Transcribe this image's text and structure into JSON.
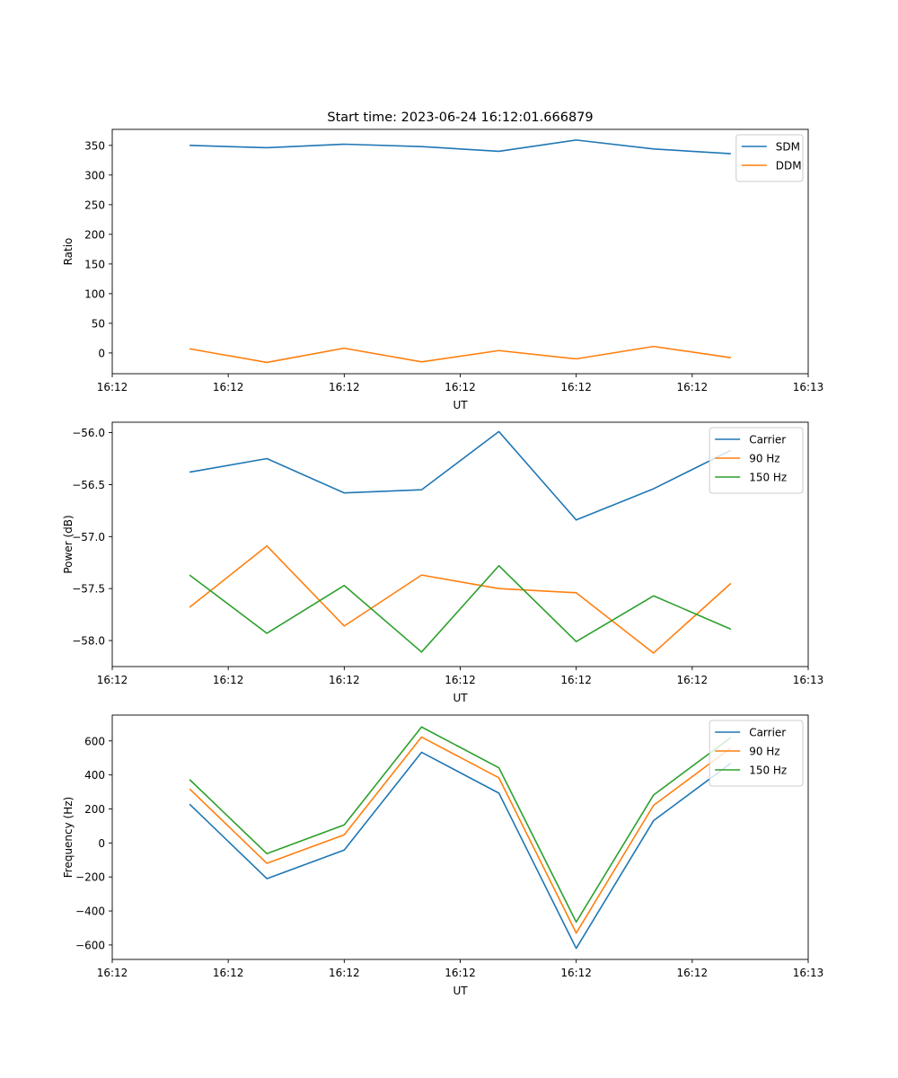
{
  "figure": {
    "title": "Start time: 2023-06-24 16:12:01.666879"
  },
  "chart_data": [
    {
      "type": "line",
      "xlabel": "UT",
      "ylabel": "Ratio",
      "x": [
        0.5,
        1.0,
        1.5,
        2.0,
        2.5,
        3.0,
        3.5,
        4.0
      ],
      "xlim": [
        0,
        4.5
      ],
      "xticks": [
        0,
        0.75,
        1.5,
        2.25,
        3.0,
        3.75,
        4.5
      ],
      "xtick_labels": [
        "16:12",
        "16:12",
        "16:12",
        "16:12",
        "16:12",
        "16:12",
        "16:13"
      ],
      "ylim": [
        -35,
        377
      ],
      "yticks": [
        0,
        50,
        100,
        150,
        200,
        250,
        300,
        350
      ],
      "ytick_labels": [
        "0",
        "50",
        "100",
        "150",
        "200",
        "250",
        "300",
        "350"
      ],
      "legend": "top-right",
      "grid": false,
      "series": [
        {
          "name": "SDM",
          "color": "#1f77b4",
          "values": [
            350,
            346,
            352,
            348,
            340,
            359,
            344,
            336
          ]
        },
        {
          "name": "DDM",
          "color": "#ff7f0e",
          "values": [
            7,
            -16,
            8,
            -15,
            4,
            -10,
            11,
            -8
          ]
        }
      ]
    },
    {
      "type": "line",
      "xlabel": "UT",
      "ylabel": "Power (dB)",
      "x": [
        0.5,
        1.0,
        1.5,
        2.0,
        2.5,
        3.0,
        3.5,
        4.0
      ],
      "xlim": [
        0,
        4.5
      ],
      "xticks": [
        0,
        0.75,
        1.5,
        2.25,
        3.0,
        3.75,
        4.5
      ],
      "xtick_labels": [
        "16:12",
        "16:12",
        "16:12",
        "16:12",
        "16:12",
        "16:12",
        "16:13"
      ],
      "ylim": [
        -58.25,
        -55.9
      ],
      "yticks": [
        -58.0,
        -57.5,
        -57.0,
        -56.5,
        -56.0
      ],
      "ytick_labels": [
        "−58.0",
        "−57.5",
        "−57.0",
        "−56.5",
        "−56.0"
      ],
      "legend": "top-right",
      "grid": false,
      "series": [
        {
          "name": "Carrier",
          "color": "#1f77b4",
          "values": [
            -56.38,
            -56.25,
            -56.58,
            -56.55,
            -55.99,
            -56.84,
            -56.54,
            -56.17
          ]
        },
        {
          "name": "90 Hz",
          "color": "#ff7f0e",
          "values": [
            -57.68,
            -57.09,
            -57.86,
            -57.37,
            -57.5,
            -57.54,
            -58.12,
            -57.45
          ]
        },
        {
          "name": "150 Hz",
          "color": "#2ca02c",
          "values": [
            -57.37,
            -57.93,
            -57.47,
            -58.11,
            -57.28,
            -58.01,
            -57.57,
            -57.89
          ]
        }
      ]
    },
    {
      "type": "line",
      "xlabel": "UT",
      "ylabel": "Frequency (Hz)",
      "x": [
        0.5,
        1.0,
        1.5,
        2.0,
        2.5,
        3.0,
        3.5,
        4.0
      ],
      "xlim": [
        0,
        4.5
      ],
      "xticks": [
        0,
        0.75,
        1.5,
        2.25,
        3.0,
        3.75,
        4.5
      ],
      "xtick_labels": [
        "16:12",
        "16:12",
        "16:12",
        "16:12",
        "16:12",
        "16:12",
        "16:13"
      ],
      "ylim": [
        -685,
        752
      ],
      "yticks": [
        -600,
        -400,
        -200,
        0,
        200,
        400,
        600
      ],
      "ytick_labels": [
        "−600",
        "−400",
        "−200",
        "0",
        "200",
        "400",
        "600"
      ],
      "legend": "top-right",
      "grid": false,
      "series": [
        {
          "name": "Carrier",
          "color": "#1f77b4",
          "values": [
            228,
            -210,
            -42,
            533,
            293,
            -620,
            131,
            469
          ]
        },
        {
          "name": "90 Hz",
          "color": "#ff7f0e",
          "values": [
            318,
            -120,
            48,
            623,
            383,
            -530,
            221,
            559
          ]
        },
        {
          "name": "150 Hz",
          "color": "#2ca02c",
          "values": [
            373,
            -63,
            106,
            682,
            442,
            -465,
            282,
            620
          ]
        }
      ]
    }
  ]
}
